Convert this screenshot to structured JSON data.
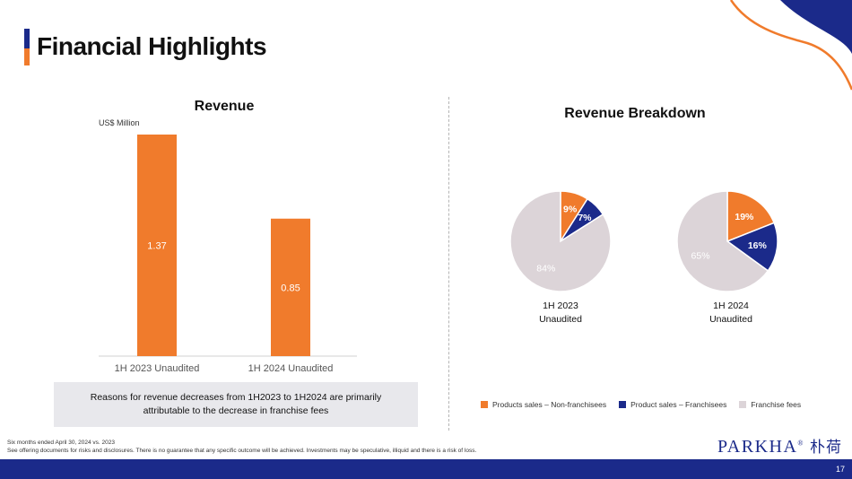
{
  "page": {
    "title": "Financial Highlights",
    "colors": {
      "navy": "#1b2a8a",
      "orange": "#f07b2c",
      "light": "#dcd4d8"
    }
  },
  "revenue": {
    "title": "Revenue",
    "unit": "US$ Million",
    "note": "Reasons for revenue decreases from 1H2023 to 1H2024 are primarily attributable to the decrease in franchise fees"
  },
  "breakdown": {
    "title": "Revenue Breakdown",
    "legend": [
      {
        "label": "Products sales – Non-franchisees",
        "color": "#f07b2c"
      },
      {
        "label": "Product sales – Franchisees",
        "color": "#1b2a8a"
      },
      {
        "label": "Franchise fees",
        "color": "#dcd4d8"
      }
    ]
  },
  "chart_data": [
    {
      "type": "bar",
      "title": "Revenue",
      "ylabel": "US$ Million",
      "categories": [
        "1H 2023 Unaudited",
        "1H 2024 Unaudited"
      ],
      "values": [
        1.37,
        0.85
      ],
      "value_labels": [
        "1.37",
        "0.85"
      ],
      "ylim": [
        0,
        1.37
      ],
      "color": "#f07b2c",
      "grid": false
    },
    {
      "type": "pie",
      "title": "1H 2023",
      "caption_line1": "1H 2023",
      "caption_line2": "Unaudited",
      "slices": [
        {
          "label": "Products sales – Non-franchisees",
          "value": 9,
          "text": "9%",
          "color": "#f07b2c"
        },
        {
          "label": "Product sales – Franchisees",
          "value": 7,
          "text": "7%",
          "color": "#1b2a8a"
        },
        {
          "label": "Franchise fees",
          "value": 84,
          "text": "84%",
          "color": "#dcd4d8"
        }
      ]
    },
    {
      "type": "pie",
      "title": "1H 2024",
      "caption_line1": "1H 2024",
      "caption_line2": "Unaudited",
      "slices": [
        {
          "label": "Products sales – Non-franchisees",
          "value": 19,
          "text": "19%",
          "color": "#f07b2c"
        },
        {
          "label": "Product sales – Franchisees",
          "value": 16,
          "text": "16%",
          "color": "#1b2a8a"
        },
        {
          "label": "Franchise fees",
          "value": 65,
          "text": "65%",
          "color": "#dcd4d8"
        }
      ]
    }
  ],
  "footer": {
    "footnote1": "Six months ended April 30, 2024 vs. 2023",
    "footnote2": "See offering documents for risks and disclosures. There is no guarantee that any specific outcome will be achieved. Investments may be speculative, illiquid and there is a risk of loss.",
    "logo": "PARKHA",
    "logo_mark": "®",
    "logo_cn": "朴荷",
    "page_number": "17"
  }
}
